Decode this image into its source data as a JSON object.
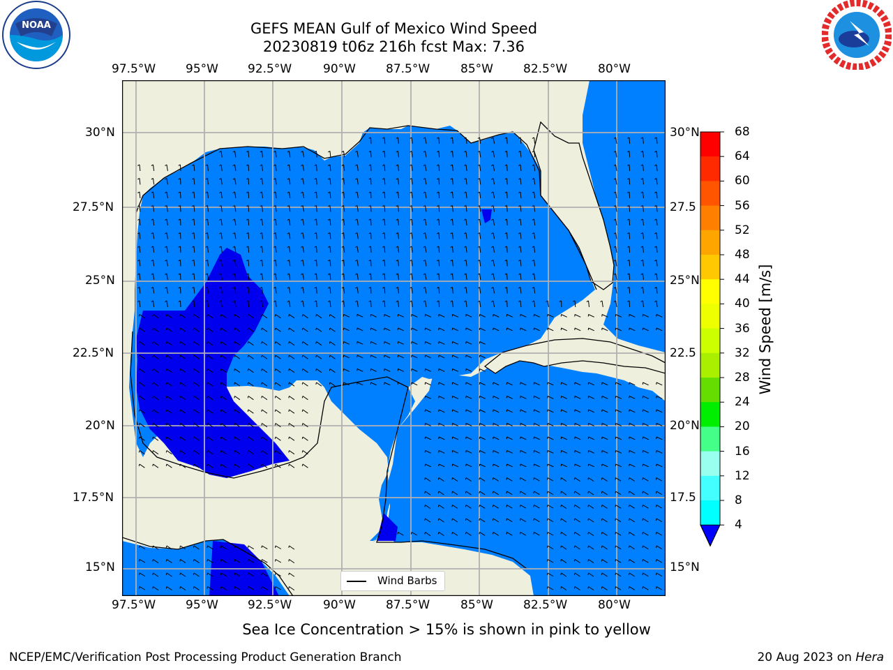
{
  "title_line1": "GEFS MEAN Gulf of Mexico Wind Speed",
  "title_line2": "20230819 t06z 216h fcst   Max: 7.36",
  "lon_ticks": [
    "97.5°W",
    "95°W",
    "92.5°W",
    "90°W",
    "87.5°W",
    "85°W",
    "82.5°W",
    "80°W"
  ],
  "lat_ticks_left": [
    "30°N",
    "27.5°N",
    "25°N",
    "22.5°N",
    "20°N",
    "17.5°N",
    "15°N"
  ],
  "lat_ticks_right": [
    "30°N",
    "27.5",
    "25°N",
    "22.5",
    "20°N",
    "17.5",
    "15°N"
  ],
  "legend_label": "Wind Barbs",
  "colorbar": {
    "label": "Wind Speed [m/s]",
    "ticks": [
      "68",
      "64",
      "60",
      "56",
      "52",
      "48",
      "44",
      "40",
      "36",
      "32",
      "28",
      "24",
      "20",
      "16",
      "12",
      "8",
      "4"
    ],
    "colors_top_to_bottom": [
      "#ff0000",
      "#ff2a00",
      "#ff5500",
      "#ff7f00",
      "#ffa500",
      "#ffc800",
      "#ffff00",
      "#eeff00",
      "#ccff00",
      "#aaee00",
      "#66dd00",
      "#00ee00",
      "#44ff88",
      "#99ffee",
      "#44ffff",
      "#00ffff",
      "#00ddff",
      "#007fff"
    ],
    "under_color": "#0000ff"
  },
  "colors": {
    "ocean": "#0080ff",
    "ocean_low": "#0000ee",
    "land": "#efefde",
    "grid": "#b0b0b0"
  },
  "note": "Sea Ice Concentration > 15% is shown in pink to yellow",
  "footer_left": "NCEP/EMC/Verification Post Processing Product Generation Branch",
  "footer_right_prefix": "20 Aug 2023 on ",
  "footer_right_machine": "Hera",
  "logos": {
    "left": "noaa-logo",
    "right": "national-weather-service-logo"
  }
}
